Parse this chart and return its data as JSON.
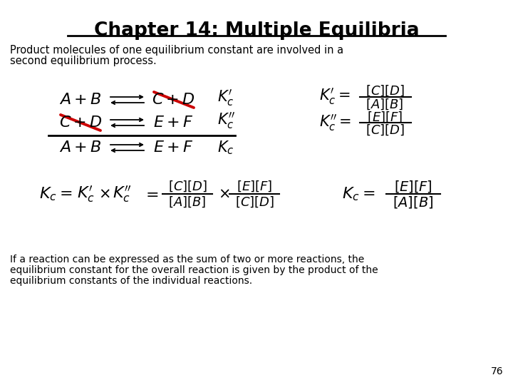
{
  "title": "Chapter 14: Multiple Equilibria",
  "subtitle1": "Product molecules of one equilibrium constant are involved in a",
  "subtitle2": "second equilibrium process.",
  "bg_color": "#ffffff",
  "text_color": "#000000",
  "red_color": "#cc0000",
  "page_number": "76",
  "footer1": "If a reaction can be expressed as the sum of two or more reactions, the",
  "footer2": "equilibrium constant for the overall reaction is given by the product of the",
  "footer3": "equilibrium constants of the individual reactions."
}
